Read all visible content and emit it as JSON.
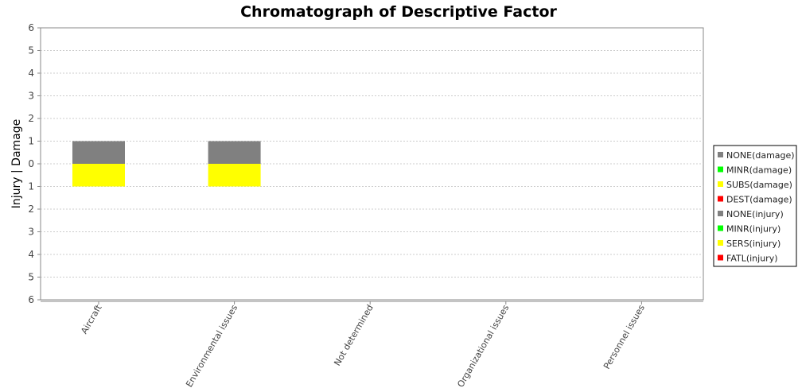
{
  "chart_data": {
    "type": "bar",
    "title": "Chromatograph of Descriptive Factor",
    "ylabel": "Injury | Damage",
    "ylim": [
      -6,
      6
    ],
    "yticks": [
      6,
      5,
      4,
      3,
      2,
      1,
      0,
      1,
      2,
      3,
      4,
      5,
      6
    ],
    "categories": [
      "Aircraft",
      "Environmental issues",
      "Not determined",
      "Organizational issues",
      "Personnel issues"
    ],
    "damage_series": [
      {
        "name": "NONE(damage)",
        "color": "#808080",
        "values": [
          1,
          1,
          0,
          0,
          0
        ]
      },
      {
        "name": "MINR(damage)",
        "color": "#00ff00",
        "values": [
          0,
          0,
          0,
          0,
          0
        ]
      },
      {
        "name": "SUBS(damage)",
        "color": "#ffff00",
        "values": [
          0,
          0,
          0,
          0,
          0
        ]
      },
      {
        "name": "DEST(damage)",
        "color": "#ff0000",
        "values": [
          0,
          0,
          0,
          0,
          0
        ]
      }
    ],
    "injury_series": [
      {
        "name": "NONE(injury)",
        "color": "#808080",
        "values": [
          0,
          0,
          0,
          0,
          0
        ]
      },
      {
        "name": "MINR(injury)",
        "color": "#00ff00",
        "values": [
          0,
          0,
          0,
          0,
          0
        ]
      },
      {
        "name": "SERS(injury)",
        "color": "#ffff00",
        "values": [
          1,
          1,
          0,
          0,
          0
        ]
      },
      {
        "name": "FATL(injury)",
        "color": "#ff0000",
        "values": [
          0,
          0,
          0,
          0,
          0
        ]
      }
    ],
    "grid": true,
    "legend_position": "right"
  }
}
